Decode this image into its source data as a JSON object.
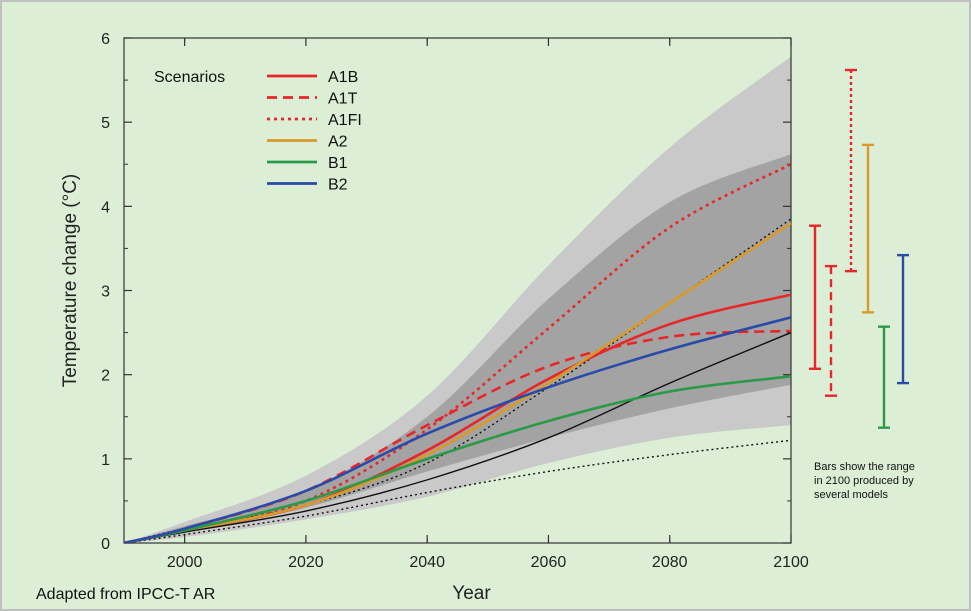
{
  "chart_data": {
    "type": "line",
    "title": "",
    "xlabel": "Year",
    "ylabel": "Temperature change (°C)",
    "xlim": [
      1990,
      2100
    ],
    "ylim": [
      0,
      6
    ],
    "x_ticks": [
      2000,
      2020,
      2040,
      2060,
      2080,
      2100
    ],
    "y_ticks": [
      0,
      1,
      2,
      3,
      4,
      5,
      6
    ],
    "legend_title": "Scenarios",
    "legend_position": "top-left",
    "grid": false,
    "series": [
      {
        "name": "A1B",
        "color": "#e8262a",
        "style": "solid",
        "x": [
          1990,
          2000,
          2020,
          2040,
          2060,
          2080,
          2100
        ],
        "y": [
          0.0,
          0.15,
          0.45,
          1.1,
          1.95,
          2.6,
          2.95
        ]
      },
      {
        "name": "A1T",
        "color": "#e8262a",
        "style": "dashed",
        "x": [
          1990,
          2000,
          2020,
          2040,
          2060,
          2080,
          2100
        ],
        "y": [
          0.0,
          0.17,
          0.62,
          1.4,
          2.1,
          2.45,
          2.52
        ]
      },
      {
        "name": "A1FI",
        "color": "#e8262a",
        "style": "dotted",
        "x": [
          1990,
          2000,
          2020,
          2040,
          2060,
          2080,
          2100
        ],
        "y": [
          0.0,
          0.15,
          0.5,
          1.35,
          2.55,
          3.75,
          4.5
        ]
      },
      {
        "name": "A2",
        "color": "#d89a2a",
        "style": "solid",
        "x": [
          1990,
          2000,
          2020,
          2040,
          2060,
          2080,
          2100
        ],
        "y": [
          0.0,
          0.15,
          0.45,
          1.05,
          1.9,
          2.85,
          3.8
        ]
      },
      {
        "name": "B1",
        "color": "#2a9a48",
        "style": "solid",
        "x": [
          1990,
          2000,
          2020,
          2040,
          2060,
          2080,
          2100
        ],
        "y": [
          0.0,
          0.15,
          0.5,
          1.0,
          1.45,
          1.8,
          1.98
        ]
      },
      {
        "name": "B2",
        "color": "#2a4aa8",
        "style": "solid",
        "x": [
          1990,
          2000,
          2020,
          2040,
          2060,
          2080,
          2100
        ],
        "y": [
          0.0,
          0.17,
          0.62,
          1.3,
          1.85,
          2.3,
          2.68
        ]
      }
    ],
    "black_lines": [
      {
        "style": "solid",
        "color": "#111111",
        "x": [
          1990,
          2000,
          2020,
          2040,
          2060,
          2080,
          2100
        ],
        "y": [
          0.0,
          0.13,
          0.38,
          0.75,
          1.25,
          1.9,
          2.5
        ]
      },
      {
        "style": "dotted",
        "color": "#111111",
        "x": [
          1990,
          2000,
          2020,
          2040,
          2060,
          2080,
          2100
        ],
        "y": [
          0.0,
          0.17,
          0.45,
          0.95,
          1.85,
          2.85,
          3.85
        ]
      },
      {
        "style": "dotted",
        "color": "#111111",
        "x": [
          1990,
          2000,
          2020,
          2040,
          2060,
          2080,
          2100
        ],
        "y": [
          0.0,
          0.1,
          0.32,
          0.6,
          0.85,
          1.05,
          1.22
        ]
      }
    ],
    "bands": [
      {
        "color": "#c9c9c9",
        "x": [
          1990,
          2000,
          2020,
          2040,
          2060,
          2080,
          2100
        ],
        "upper": [
          0.0,
          0.25,
          0.8,
          1.75,
          3.3,
          4.7,
          5.78
        ],
        "lower": [
          0.0,
          0.07,
          0.28,
          0.55,
          0.95,
          1.25,
          1.4
        ]
      },
      {
        "color": "#a3a3a3",
        "x": [
          1990,
          2000,
          2020,
          2040,
          2060,
          2080,
          2100
        ],
        "upper": [
          0.0,
          0.2,
          0.62,
          1.5,
          2.9,
          4.05,
          4.62
        ],
        "lower": [
          0.0,
          0.12,
          0.42,
          0.85,
          1.25,
          1.6,
          1.88
        ]
      }
    ],
    "range_bars": [
      {
        "scenario": "A1B",
        "color": "#e8262a",
        "style": "solid",
        "low": 2.07,
        "high": 3.77
      },
      {
        "scenario": "A1T",
        "color": "#e8262a",
        "style": "dashed",
        "low": 1.75,
        "high": 3.29
      },
      {
        "scenario": "A1FI",
        "color": "#e8262a",
        "style": "dotted",
        "low": 3.23,
        "high": 5.62
      },
      {
        "scenario": "A2",
        "color": "#d89a2a",
        "style": "solid",
        "low": 2.74,
        "high": 4.73
      },
      {
        "scenario": "B1",
        "color": "#2a9a48",
        "style": "solid",
        "low": 1.37,
        "high": 2.57
      },
      {
        "scenario": "B2",
        "color": "#2a4aa8",
        "style": "solid",
        "low": 1.9,
        "high": 3.42
      }
    ],
    "annotations": {
      "range_note": [
        "Bars show the range",
        "in 2100 produced by",
        "several models"
      ],
      "credit": "Adapted from IPCC-T AR"
    }
  }
}
